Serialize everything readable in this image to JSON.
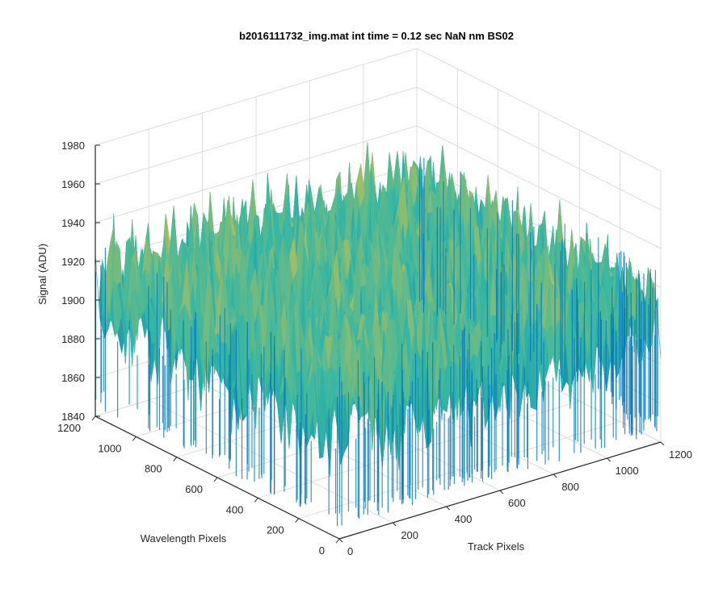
{
  "chart_data": {
    "type": "surface",
    "title": "b2016111732_img.mat int time = 0.12 sec  NaN nm BS02",
    "xlabel": "Track Pixels",
    "ylabel": "Wavelength Pixels",
    "zlabel": "Signal (ADU)",
    "xlim": [
      0,
      1200
    ],
    "ylim": [
      0,
      1200
    ],
    "zlim": [
      1840,
      1980
    ],
    "xticks": [
      "0",
      "200",
      "400",
      "600",
      "800",
      "1000",
      "1200"
    ],
    "yticks": [
      "0",
      "200",
      "400",
      "600",
      "800",
      "1000",
      "1200"
    ],
    "zticks": [
      "1840",
      "1860",
      "1880",
      "1900",
      "1920",
      "1940",
      "1960",
      "1980"
    ],
    "grid": true,
    "colormap": "parula",
    "colors": {
      "low": "#0072bd",
      "mid": "#35b7a5",
      "high": "#e6c23a",
      "grid": "#dcdcdc",
      "axis": "#262626"
    },
    "surface": {
      "mean_signal": 1905,
      "noise_range": [
        1850,
        1965
      ],
      "typical_min": 1855,
      "typical_max": 1950,
      "peak": 1965,
      "x_points": [
        0,
        100,
        200,
        300,
        400,
        500,
        600,
        700,
        800,
        900,
        1000,
        1100,
        1200
      ],
      "y_points": [
        0,
        100,
        200,
        300,
        400,
        500,
        600,
        700,
        800,
        900,
        1000,
        1100,
        1200
      ]
    }
  }
}
